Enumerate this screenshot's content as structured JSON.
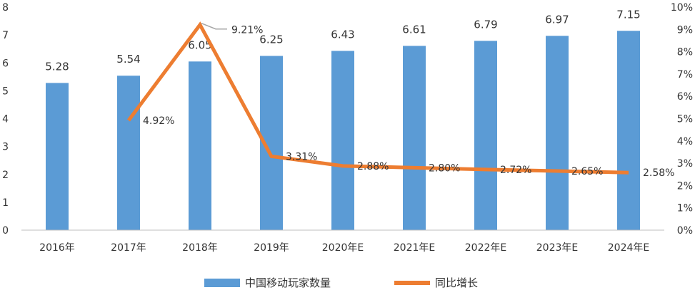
{
  "chart_data": {
    "type": "bar",
    "categories": [
      "2016年",
      "2017年",
      "2018年",
      "2019年",
      "2020年E",
      "2021年E",
      "2022年E",
      "2023年E",
      "2024年E"
    ],
    "series": [
      {
        "name": "中国移动玩家数量",
        "type": "bar",
        "axis": "left",
        "values": [
          5.28,
          5.54,
          6.05,
          6.25,
          6.43,
          6.61,
          6.79,
          6.97,
          7.15
        ],
        "labels": [
          "5.28",
          "5.54",
          "6.05",
          "6.25",
          "6.43",
          "6.61",
          "6.79",
          "6.97",
          "7.15"
        ],
        "color": "#5b9bd5"
      },
      {
        "name": "同比增长",
        "type": "line",
        "axis": "right",
        "values": [
          null,
          4.92,
          9.21,
          3.31,
          2.88,
          2.8,
          2.72,
          2.65,
          2.58
        ],
        "labels": [
          "",
          "4.92%",
          "9.21%",
          "3.31%",
          "2.88%",
          "2.80%",
          "2.72%",
          "2.65%",
          "2.58%"
        ],
        "color": "#ed7d31"
      }
    ],
    "y_left": {
      "min": 0,
      "max": 8,
      "ticks": [
        "0",
        "1",
        "2",
        "3",
        "4",
        "5",
        "6",
        "7",
        "8"
      ]
    },
    "y_right": {
      "min": 0,
      "max": 10,
      "ticks": [
        "0%",
        "1%",
        "2%",
        "3%",
        "4%",
        "5%",
        "6%",
        "7%",
        "8%",
        "9%",
        "10%"
      ]
    },
    "grid": false,
    "legend": "bottom"
  }
}
